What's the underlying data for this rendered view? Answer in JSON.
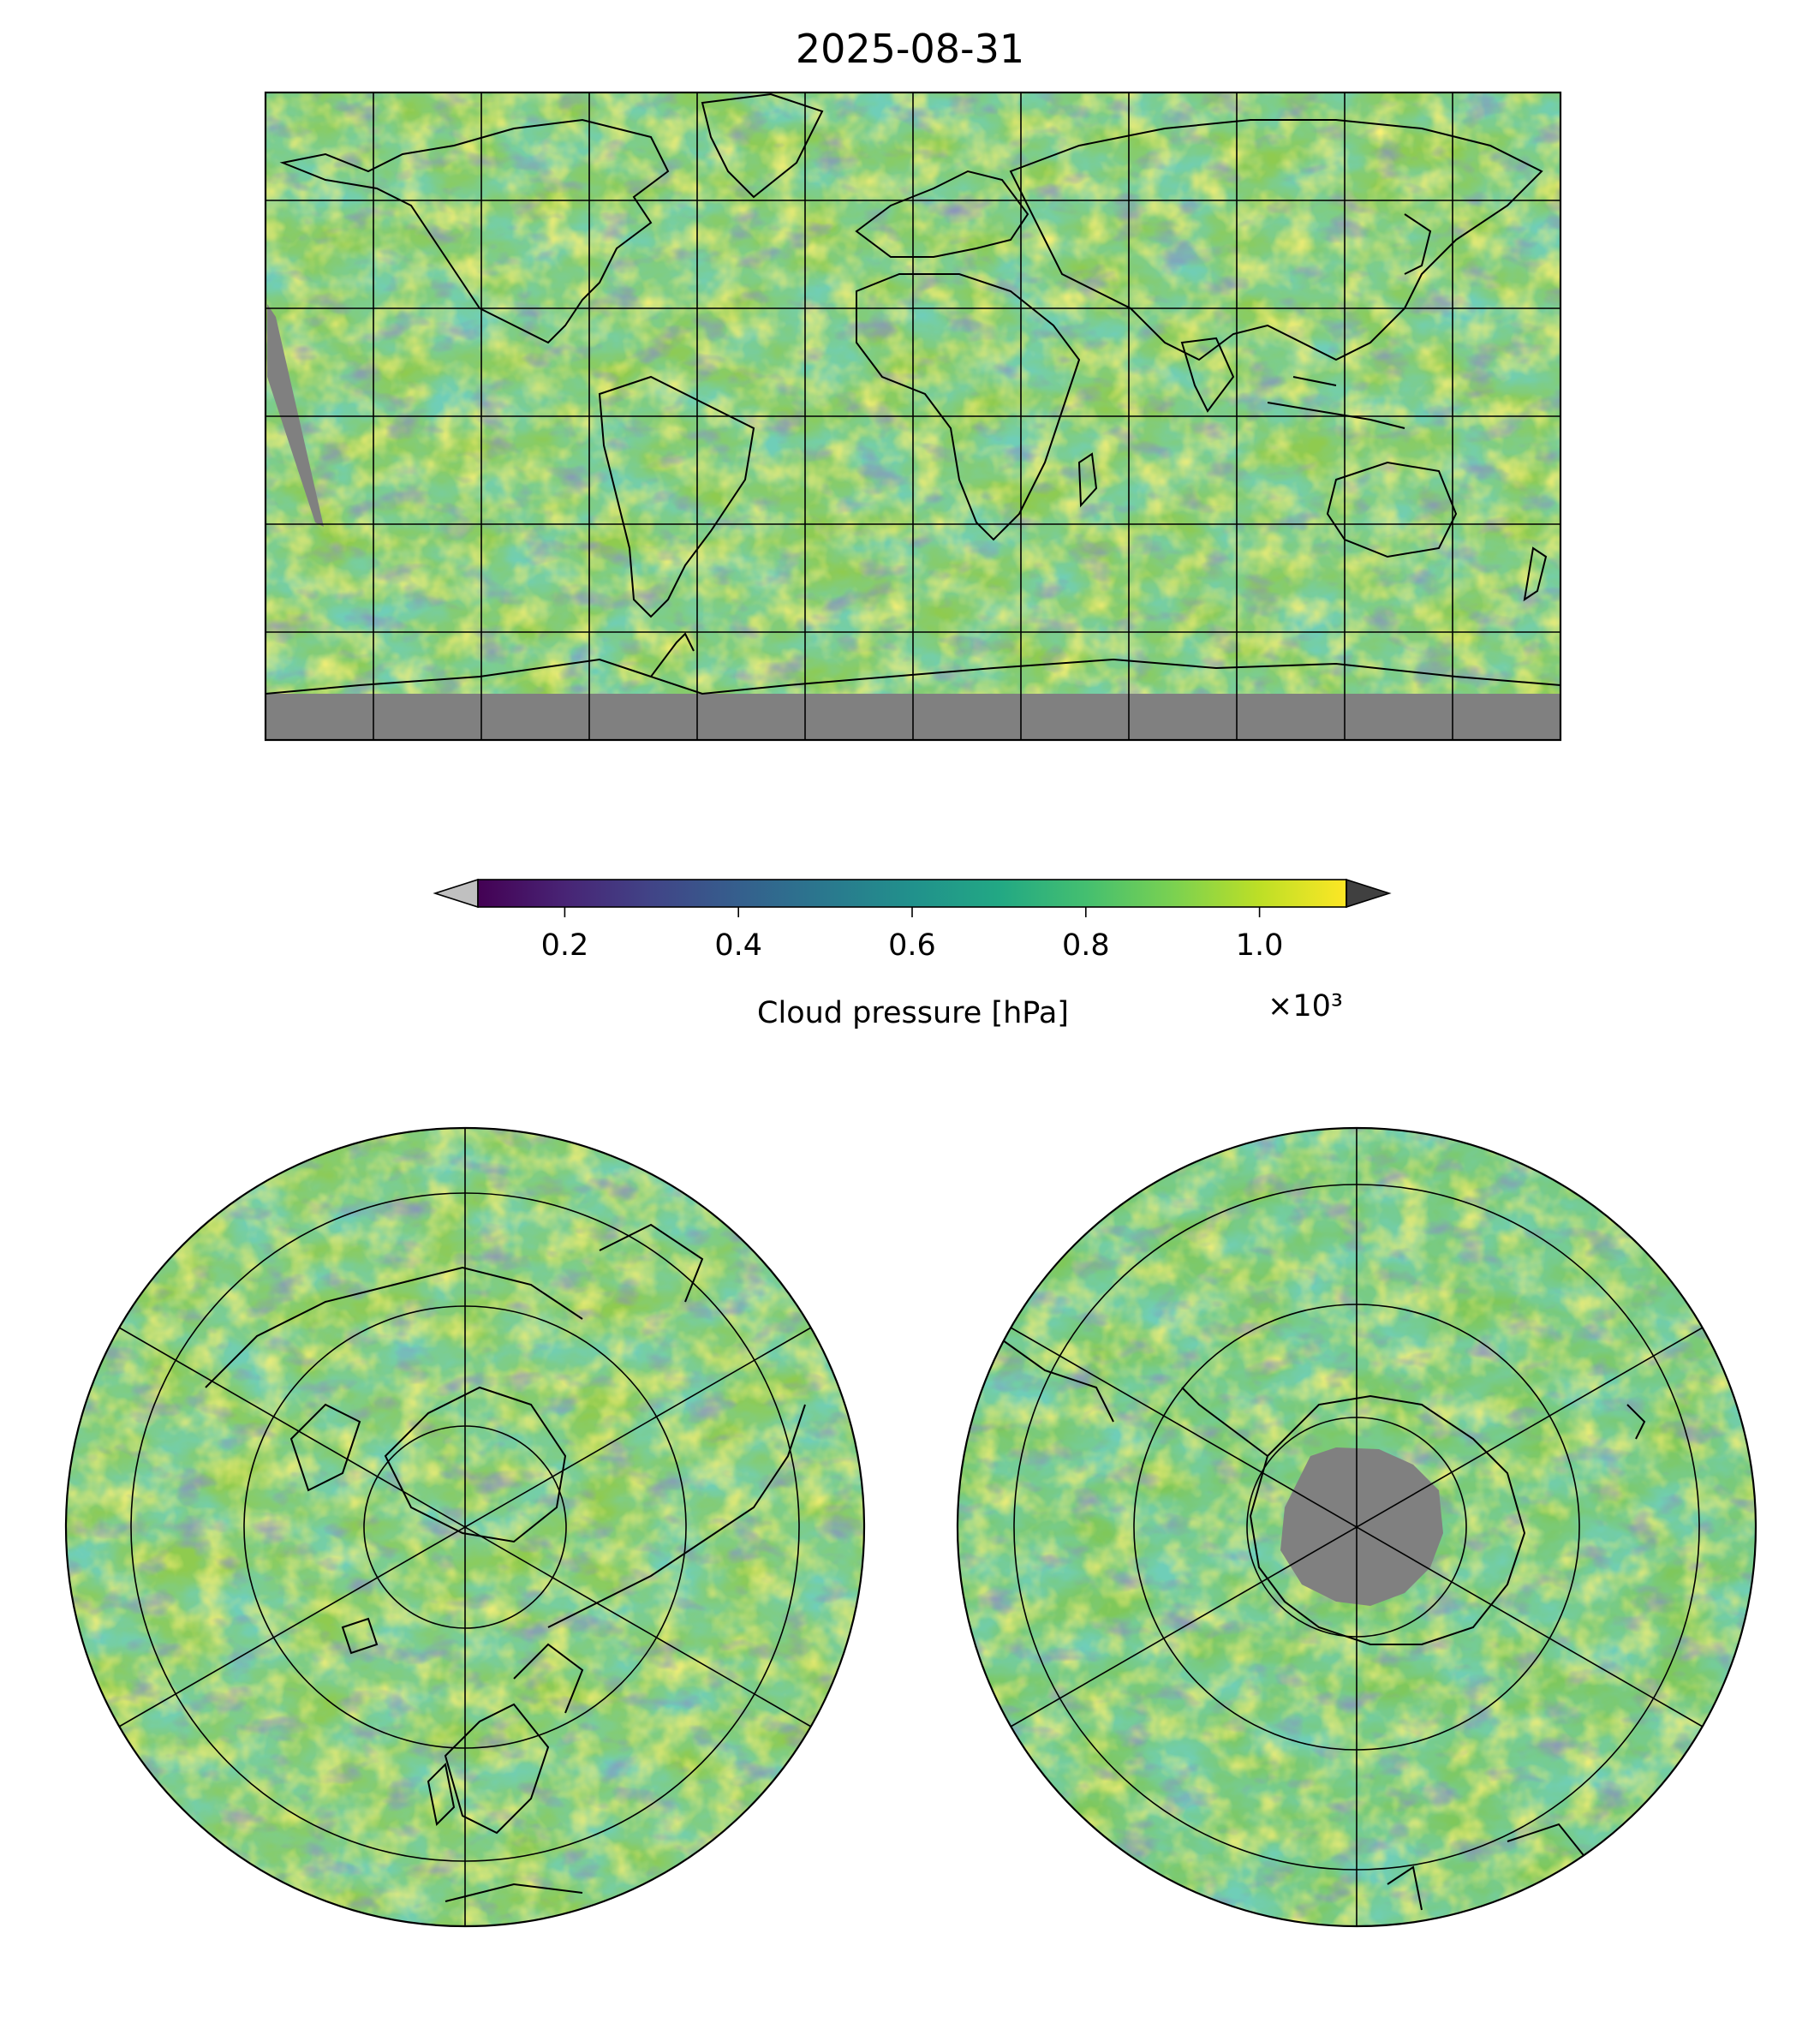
{
  "figure": {
    "title": "2025-08-31"
  },
  "colorbar": {
    "label": "Cloud pressure [hPa]",
    "multiplier": "×10³",
    "ticks": [
      {
        "value": 0.2,
        "label": "0.2"
      },
      {
        "value": 0.4,
        "label": "0.4"
      },
      {
        "value": 0.6,
        "label": "0.6"
      },
      {
        "value": 0.8,
        "label": "0.8"
      },
      {
        "value": 1.0,
        "label": "1.0"
      }
    ],
    "range": [
      0.1,
      1.1
    ],
    "colormap": "viridis",
    "under_color": "#c0c0c0",
    "over_color": "#404040",
    "missing_color": "#808080"
  },
  "maps": [
    {
      "name": "global",
      "projection": "plate-carree",
      "lon_range": [
        -180,
        180
      ],
      "lat_range": [
        -90,
        90
      ],
      "gridline_lon_step": 30,
      "gridline_lat_step": 30
    },
    {
      "name": "north-polar",
      "projection": "north-polar-stereographic",
      "center": "north-pole",
      "circle_lat": [
        80,
        70,
        60,
        50,
        40
      ]
    },
    {
      "name": "south-polar",
      "projection": "south-polar-stereographic",
      "center": "south-pole",
      "circle_lat": [
        -80,
        -70,
        -60,
        -50,
        -40
      ]
    }
  ]
}
